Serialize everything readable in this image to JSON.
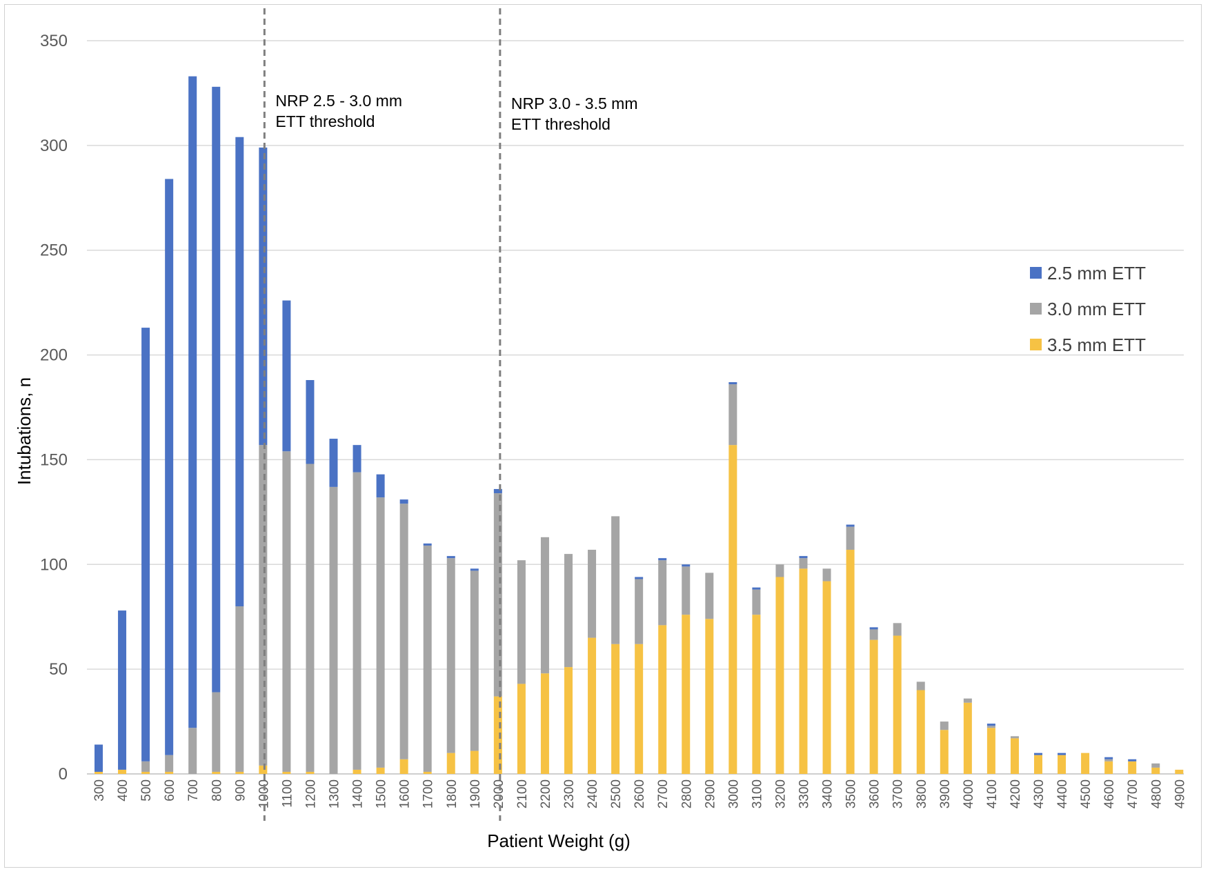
{
  "chart_data": {
    "type": "bar",
    "stacked": true,
    "xlabel": "Patient Weight (g)",
    "ylabel": "Intubations, n",
    "ylim": [
      0,
      350
    ],
    "yticks": [
      0,
      50,
      100,
      150,
      200,
      250,
      300,
      350
    ],
    "grid": "horizontal",
    "legend_position": "right",
    "categories": [
      "300",
      "400",
      "500",
      "600",
      "700",
      "800",
      "900",
      "1000",
      "1100",
      "1200",
      "1300",
      "1400",
      "1500",
      "1600",
      "1700",
      "1800",
      "1900",
      "2000",
      "2100",
      "2200",
      "2300",
      "2400",
      "2500",
      "2600",
      "2700",
      "2800",
      "2900",
      "3000",
      "3100",
      "3200",
      "3300",
      "3400",
      "3500",
      "3600",
      "3700",
      "3800",
      "3900",
      "4000",
      "4100",
      "4200",
      "4300",
      "4400",
      "4500",
      "4600",
      "4700",
      "4800",
      "4900"
    ],
    "series": [
      {
        "name": "3.5 mm ETT",
        "color": "#F6C244",
        "values": [
          1,
          2,
          1,
          1,
          0,
          1,
          1,
          4,
          1,
          1,
          0,
          2,
          3,
          7,
          1,
          10,
          11,
          37,
          43,
          48,
          51,
          65,
          62,
          62,
          71,
          76,
          74,
          157,
          76,
          94,
          98,
          92,
          107,
          64,
          66,
          40,
          21,
          34,
          22,
          17,
          9,
          9,
          10,
          6,
          6,
          3,
          2
        ]
      },
      {
        "name": "3.0 mm ETT",
        "color": "#A5A5A5",
        "values": [
          0,
          0,
          5,
          8,
          22,
          38,
          79,
          153,
          153,
          147,
          137,
          142,
          129,
          122,
          108,
          93,
          86,
          97,
          59,
          65,
          54,
          42,
          61,
          31,
          31,
          23,
          22,
          29,
          12,
          6,
          5,
          6,
          11,
          5,
          6,
          4,
          4,
          2,
          1,
          1,
          0,
          0,
          0,
          1,
          0,
          2,
          0
        ]
      },
      {
        "name": "2.5 mm ETT",
        "color": "#4A72C4",
        "values": [
          13,
          76,
          207,
          275,
          311,
          289,
          224,
          142,
          72,
          40,
          23,
          13,
          11,
          2,
          1,
          1,
          1,
          2,
          0,
          0,
          0,
          0,
          0,
          1,
          1,
          1,
          0,
          1,
          1,
          0,
          1,
          0,
          1,
          1,
          0,
          0,
          0,
          0,
          1,
          0,
          1,
          1,
          0,
          1,
          1,
          0,
          0
        ]
      }
    ],
    "annotations": [
      {
        "x": "1000",
        "line1": "NRP 2.5 - 3.0 mm",
        "line2": "ETT threshold"
      },
      {
        "x": "2000",
        "line1": "NRP 3.0 - 3.5 mm",
        "line2": "ETT threshold"
      }
    ]
  }
}
